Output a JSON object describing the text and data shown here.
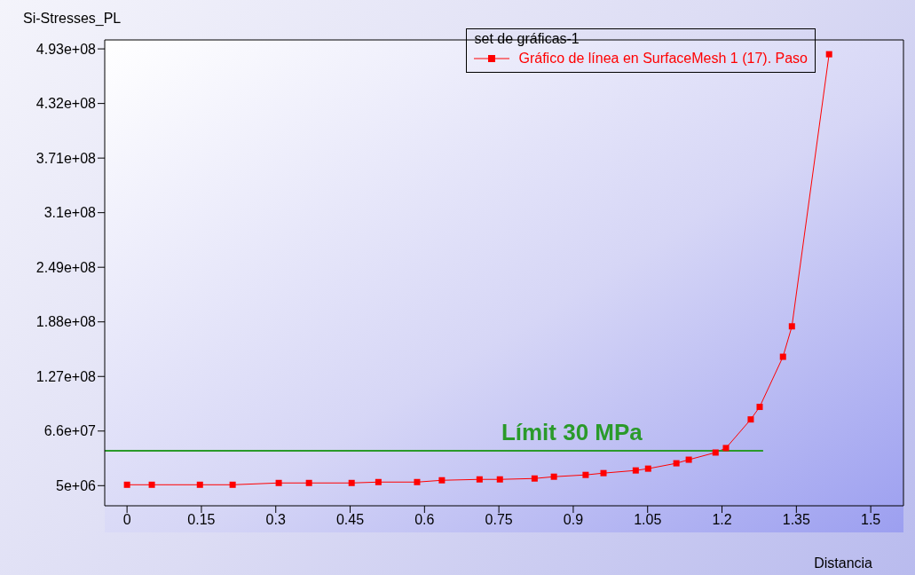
{
  "chart_data": {
    "type": "line",
    "ylabel": "Si-Stresses_PL",
    "xlabel": "Distancia",
    "legend_title": "set de gráficas-1",
    "legend": "top right",
    "marker": "square",
    "line_style": "solid",
    "xlim": [
      -0.045,
      1.566
    ],
    "xticks": [
      0,
      0.15,
      0.3,
      0.45,
      0.6,
      0.75,
      0.9,
      1.05,
      1.2,
      1.35,
      1.5
    ],
    "ylim": [
      -17500000,
      503000000
    ],
    "yticks": [
      {
        "value": 5000000,
        "label": "5e+06"
      },
      {
        "value": 66000000,
        "label": "6.6e+07"
      },
      {
        "value": 127000000,
        "label": "1.27e+08"
      },
      {
        "value": 188000000,
        "label": "1.88e+08"
      },
      {
        "value": 249000000,
        "label": "2.49e+08"
      },
      {
        "value": 310000000,
        "label": "3.1e+08"
      },
      {
        "value": 371000000,
        "label": "3.71e+08"
      },
      {
        "value": 432000000,
        "label": "4.32e+08"
      },
      {
        "value": 493000000,
        "label": "4.93e+08"
      }
    ],
    "series": [
      {
        "name": "Gráfico de línea en SurfaceMesh 1 (17). Paso",
        "color": "#ff0000",
        "x": [
          0,
          0.05,
          0.147,
          0.213,
          0.306,
          0.367,
          0.453,
          0.507,
          0.585,
          0.635,
          0.711,
          0.752,
          0.822,
          0.861,
          0.925,
          0.961,
          1.026,
          1.051,
          1.108,
          1.133,
          1.187,
          1.208,
          1.258,
          1.276,
          1.323,
          1.341,
          1.416
        ],
        "values": [
          6000000,
          6000000,
          6000000,
          6000000,
          8000000,
          8000000,
          8000000,
          9000000,
          9000000,
          11000000,
          12000000,
          12000000,
          13000000,
          15000000,
          17000000,
          19000000,
          22000000,
          24000000,
          30000000,
          34000000,
          42000000,
          47000000,
          79000000,
          93000000,
          149000000,
          183000000,
          487000000
        ]
      },
      {
        "name": "Límit 30 MPa",
        "type": "line",
        "marker": "none",
        "color": "#2a9a2a",
        "x": [
          -0.045,
          1.283
        ],
        "values": [
          44000000,
          44000000
        ]
      }
    ]
  }
}
